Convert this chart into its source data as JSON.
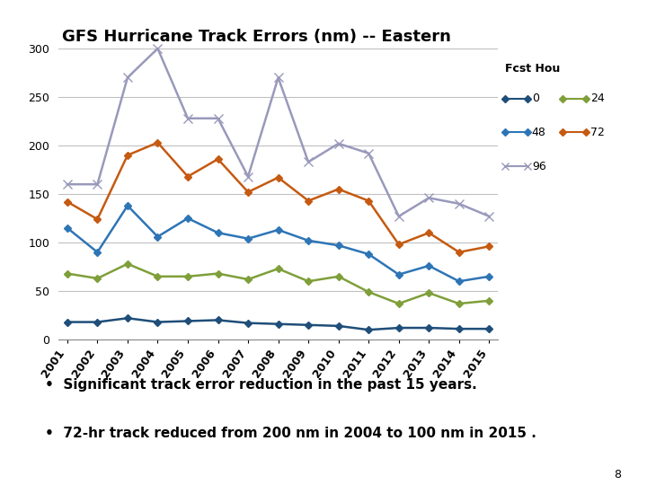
{
  "title": "GFS Hurricane Track Errors (nm) -- Eastern",
  "years": [
    2001,
    2002,
    2003,
    2004,
    2005,
    2006,
    2007,
    2008,
    2009,
    2010,
    2011,
    2012,
    2013,
    2014,
    2015
  ],
  "series_order": [
    "0",
    "24",
    "48",
    "72",
    "96"
  ],
  "series": {
    "0": {
      "values": [
        18,
        18,
        22,
        18,
        19,
        20,
        17,
        16,
        15,
        14,
        10,
        12,
        12,
        11,
        11
      ],
      "color": "#1f4e79",
      "marker": "D",
      "markersize": 4,
      "label": "0"
    },
    "24": {
      "values": [
        68,
        63,
        78,
        65,
        65,
        68,
        62,
        73,
        60,
        65,
        49,
        37,
        48,
        37,
        40
      ],
      "color": "#7f9f3a",
      "marker": "D",
      "markersize": 4,
      "label": "24"
    },
    "48": {
      "values": [
        115,
        90,
        138,
        106,
        125,
        110,
        104,
        113,
        102,
        97,
        88,
        67,
        76,
        60,
        65
      ],
      "color": "#2e75b6",
      "marker": "D",
      "markersize": 4,
      "label": "48"
    },
    "72": {
      "values": [
        142,
        124,
        190,
        203,
        168,
        186,
        152,
        167,
        143,
        155,
        143,
        98,
        110,
        90,
        96
      ],
      "color": "#c55a11",
      "marker": "D",
      "markersize": 4,
      "label": "72"
    },
    "96": {
      "values": [
        160,
        160,
        270,
        300,
        228,
        228,
        168,
        270,
        183,
        202,
        192,
        127,
        146,
        140,
        127
      ],
      "color": "#9999bb",
      "marker": "x",
      "markersize": 7,
      "label": "96"
    }
  },
  "ylim": [
    0,
    300
  ],
  "yticks": [
    0,
    50,
    100,
    150,
    200,
    250,
    300
  ],
  "legend_title": "Fcst Hou",
  "bullet1": "Significant track error reduction in the past 15 years.",
  "bullet2": "72-hr track reduced from 200 nm in 2004 to 100 nm in 2015 .",
  "page_number": "8",
  "background_color": "#ffffff",
  "grid_color": "#c0c0c0",
  "title_fontsize": 13,
  "axis_fontsize": 9,
  "legend_fontsize": 9,
  "bullet_fontsize": 11,
  "linewidth": 1.8
}
